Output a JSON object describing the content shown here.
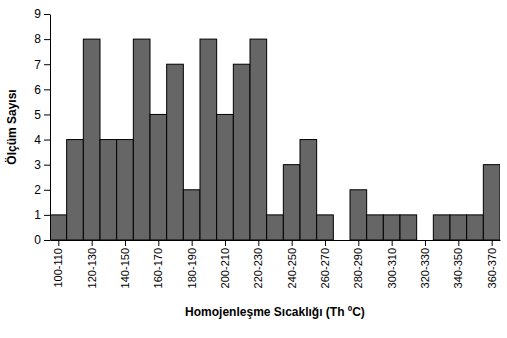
{
  "chart_data": {
    "type": "histogram",
    "x_label": "Homojenleşme Sıcaklığı (Th ºC)",
    "y_label": "Ölçüm Sayısı",
    "bins": [
      100,
      110,
      120,
      130,
      140,
      150,
      160,
      170,
      180,
      190,
      200,
      210,
      220,
      230,
      240,
      250,
      260,
      270,
      280,
      290,
      300,
      310,
      320,
      330,
      340,
      350,
      360,
      370
    ],
    "values": [
      1,
      4,
      8,
      4,
      4,
      8,
      5,
      7,
      2,
      8,
      5,
      7,
      8,
      1,
      3,
      4,
      1,
      0,
      2,
      1,
      1,
      1,
      0,
      1,
      1,
      1,
      3
    ],
    "color": "#666666",
    "xlim": [
      100,
      370
    ],
    "xticks": [
      {
        "value": 105,
        "label": "100-110"
      },
      {
        "value": 125,
        "label": "120-130"
      },
      {
        "value": 145,
        "label": "140-150"
      },
      {
        "value": 165,
        "label": "160-170"
      },
      {
        "value": 185,
        "label": "180-190"
      },
      {
        "value": 205,
        "label": "200-210"
      },
      {
        "value": 225,
        "label": "220-230"
      },
      {
        "value": 245,
        "label": "240-250"
      },
      {
        "value": 265,
        "label": "260-270"
      },
      {
        "value": 285,
        "label": "280-290"
      },
      {
        "value": 305,
        "label": "300-310"
      },
      {
        "value": 325,
        "label": "320-330"
      },
      {
        "value": 345,
        "label": "340-350"
      },
      {
        "value": 365,
        "label": "360-370"
      }
    ],
    "ylim": [
      0,
      9
    ],
    "yticks": [
      0,
      1,
      2,
      3,
      4,
      5,
      6,
      7,
      8,
      9
    ],
    "grid": false
  }
}
